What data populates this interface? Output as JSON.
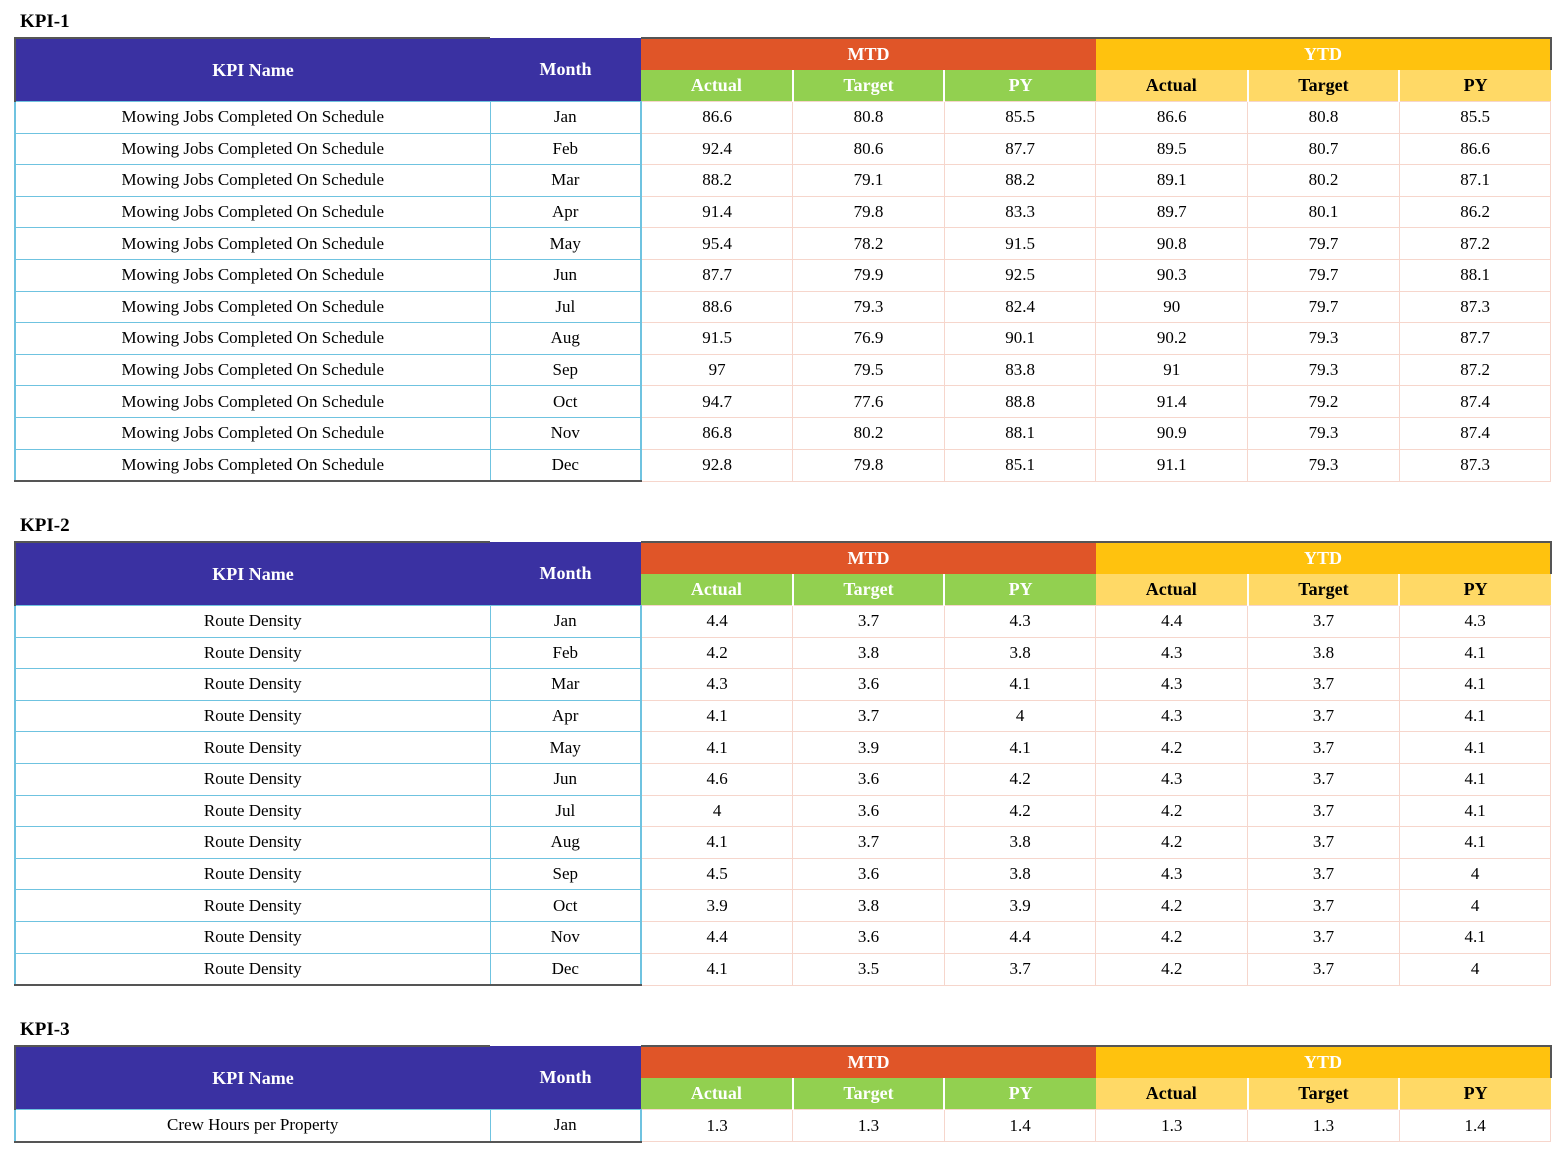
{
  "headers": {
    "kpi_name": "KPI Name",
    "month": "Month",
    "mtd": "MTD",
    "ytd": "YTD",
    "actual": "Actual",
    "target": "Target",
    "py": "PY"
  },
  "sections": [
    {
      "title": "KPI-1",
      "rows": [
        {
          "name": "Mowing Jobs Completed On Schedule",
          "month": "Jan",
          "mtd_actual": "86.6",
          "mtd_target": "80.8",
          "mtd_py": "85.5",
          "ytd_actual": "86.6",
          "ytd_target": "80.8",
          "ytd_py": "85.5"
        },
        {
          "name": "Mowing Jobs Completed On Schedule",
          "month": "Feb",
          "mtd_actual": "92.4",
          "mtd_target": "80.6",
          "mtd_py": "87.7",
          "ytd_actual": "89.5",
          "ytd_target": "80.7",
          "ytd_py": "86.6"
        },
        {
          "name": "Mowing Jobs Completed On Schedule",
          "month": "Mar",
          "mtd_actual": "88.2",
          "mtd_target": "79.1",
          "mtd_py": "88.2",
          "ytd_actual": "89.1",
          "ytd_target": "80.2",
          "ytd_py": "87.1"
        },
        {
          "name": "Mowing Jobs Completed On Schedule",
          "month": "Apr",
          "mtd_actual": "91.4",
          "mtd_target": "79.8",
          "mtd_py": "83.3",
          "ytd_actual": "89.7",
          "ytd_target": "80.1",
          "ytd_py": "86.2"
        },
        {
          "name": "Mowing Jobs Completed On Schedule",
          "month": "May",
          "mtd_actual": "95.4",
          "mtd_target": "78.2",
          "mtd_py": "91.5",
          "ytd_actual": "90.8",
          "ytd_target": "79.7",
          "ytd_py": "87.2"
        },
        {
          "name": "Mowing Jobs Completed On Schedule",
          "month": "Jun",
          "mtd_actual": "87.7",
          "mtd_target": "79.9",
          "mtd_py": "92.5",
          "ytd_actual": "90.3",
          "ytd_target": "79.7",
          "ytd_py": "88.1"
        },
        {
          "name": "Mowing Jobs Completed On Schedule",
          "month": "Jul",
          "mtd_actual": "88.6",
          "mtd_target": "79.3",
          "mtd_py": "82.4",
          "ytd_actual": "90",
          "ytd_target": "79.7",
          "ytd_py": "87.3"
        },
        {
          "name": "Mowing Jobs Completed On Schedule",
          "month": "Aug",
          "mtd_actual": "91.5",
          "mtd_target": "76.9",
          "mtd_py": "90.1",
          "ytd_actual": "90.2",
          "ytd_target": "79.3",
          "ytd_py": "87.7"
        },
        {
          "name": "Mowing Jobs Completed On Schedule",
          "month": "Sep",
          "mtd_actual": "97",
          "mtd_target": "79.5",
          "mtd_py": "83.8",
          "ytd_actual": "91",
          "ytd_target": "79.3",
          "ytd_py": "87.2"
        },
        {
          "name": "Mowing Jobs Completed On Schedule",
          "month": "Oct",
          "mtd_actual": "94.7",
          "mtd_target": "77.6",
          "mtd_py": "88.8",
          "ytd_actual": "91.4",
          "ytd_target": "79.2",
          "ytd_py": "87.4"
        },
        {
          "name": "Mowing Jobs Completed On Schedule",
          "month": "Nov",
          "mtd_actual": "86.8",
          "mtd_target": "80.2",
          "mtd_py": "88.1",
          "ytd_actual": "90.9",
          "ytd_target": "79.3",
          "ytd_py": "87.4"
        },
        {
          "name": "Mowing Jobs Completed On Schedule",
          "month": "Dec",
          "mtd_actual": "92.8",
          "mtd_target": "79.8",
          "mtd_py": "85.1",
          "ytd_actual": "91.1",
          "ytd_target": "79.3",
          "ytd_py": "87.3"
        }
      ]
    },
    {
      "title": "KPI-2",
      "rows": [
        {
          "name": "Route Density",
          "month": "Jan",
          "mtd_actual": "4.4",
          "mtd_target": "3.7",
          "mtd_py": "4.3",
          "ytd_actual": "4.4",
          "ytd_target": "3.7",
          "ytd_py": "4.3"
        },
        {
          "name": "Route Density",
          "month": "Feb",
          "mtd_actual": "4.2",
          "mtd_target": "3.8",
          "mtd_py": "3.8",
          "ytd_actual": "4.3",
          "ytd_target": "3.8",
          "ytd_py": "4.1"
        },
        {
          "name": "Route Density",
          "month": "Mar",
          "mtd_actual": "4.3",
          "mtd_target": "3.6",
          "mtd_py": "4.1",
          "ytd_actual": "4.3",
          "ytd_target": "3.7",
          "ytd_py": "4.1"
        },
        {
          "name": "Route Density",
          "month": "Apr",
          "mtd_actual": "4.1",
          "mtd_target": "3.7",
          "mtd_py": "4",
          "ytd_actual": "4.3",
          "ytd_target": "3.7",
          "ytd_py": "4.1"
        },
        {
          "name": "Route Density",
          "month": "May",
          "mtd_actual": "4.1",
          "mtd_target": "3.9",
          "mtd_py": "4.1",
          "ytd_actual": "4.2",
          "ytd_target": "3.7",
          "ytd_py": "4.1"
        },
        {
          "name": "Route Density",
          "month": "Jun",
          "mtd_actual": "4.6",
          "mtd_target": "3.6",
          "mtd_py": "4.2",
          "ytd_actual": "4.3",
          "ytd_target": "3.7",
          "ytd_py": "4.1"
        },
        {
          "name": "Route Density",
          "month": "Jul",
          "mtd_actual": "4",
          "mtd_target": "3.6",
          "mtd_py": "4.2",
          "ytd_actual": "4.2",
          "ytd_target": "3.7",
          "ytd_py": "4.1"
        },
        {
          "name": "Route Density",
          "month": "Aug",
          "mtd_actual": "4.1",
          "mtd_target": "3.7",
          "mtd_py": "3.8",
          "ytd_actual": "4.2",
          "ytd_target": "3.7",
          "ytd_py": "4.1"
        },
        {
          "name": "Route Density",
          "month": "Sep",
          "mtd_actual": "4.5",
          "mtd_target": "3.6",
          "mtd_py": "3.8",
          "ytd_actual": "4.3",
          "ytd_target": "3.7",
          "ytd_py": "4"
        },
        {
          "name": "Route Density",
          "month": "Oct",
          "mtd_actual": "3.9",
          "mtd_target": "3.8",
          "mtd_py": "3.9",
          "ytd_actual": "4.2",
          "ytd_target": "3.7",
          "ytd_py": "4"
        },
        {
          "name": "Route Density",
          "month": "Nov",
          "mtd_actual": "4.4",
          "mtd_target": "3.6",
          "mtd_py": "4.4",
          "ytd_actual": "4.2",
          "ytd_target": "3.7",
          "ytd_py": "4.1"
        },
        {
          "name": "Route Density",
          "month": "Dec",
          "mtd_actual": "4.1",
          "mtd_target": "3.5",
          "mtd_py": "3.7",
          "ytd_actual": "4.2",
          "ytd_target": "3.7",
          "ytd_py": "4"
        }
      ]
    },
    {
      "title": "KPI-3",
      "rows": [
        {
          "name": "Crew Hours per Property",
          "month": "Jan",
          "mtd_actual": "1.3",
          "mtd_target": "1.3",
          "mtd_py": "1.4",
          "ytd_actual": "1.3",
          "ytd_target": "1.3",
          "ytd_py": "1.4"
        }
      ]
    }
  ]
}
